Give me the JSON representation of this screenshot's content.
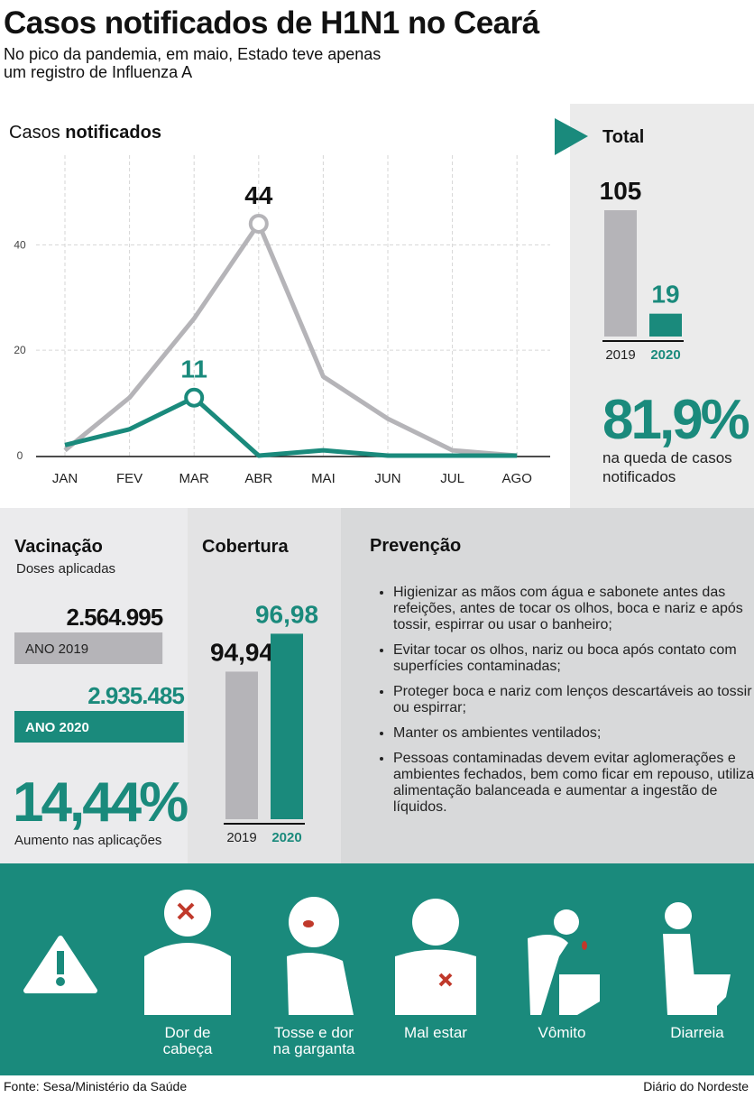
{
  "header": {
    "title": "Casos notificados de H1N1 no Ceará",
    "subtitle": "No pico da pandemia, em maio, Estado teve apenas um registro de Influenza A"
  },
  "chart_data": [
    {
      "type": "line",
      "title": "Casos",
      "title_bold": "notificados",
      "categories": [
        "JAN",
        "FEV",
        "MAR",
        "ABR",
        "MAI",
        "JUN",
        "JUL",
        "AGO"
      ],
      "series": [
        {
          "color": "#b5b4b8",
          "values": [
            1,
            11,
            26,
            44,
            15,
            7,
            1,
            0
          ],
          "markers": [
            3
          ]
        },
        {
          "color": "#1a8a7c",
          "values": [
            2,
            5,
            11,
            0,
            1,
            0,
            0,
            0
          ],
          "markers": [
            2
          ]
        }
      ],
      "ylim": [
        0,
        57
      ],
      "yticks": [
        0,
        20,
        40
      ],
      "grid": true
    },
    {
      "type": "bar",
      "title": "Total",
      "categories": [
        "2019",
        "2020"
      ],
      "values": [
        105,
        19
      ],
      "colors": [
        "#b5b4b8",
        "#1a8a7c"
      ],
      "ylim": [
        0,
        105
      ],
      "highlight": "81,9%",
      "highlight_text": "na queda de casos notificados"
    },
    {
      "type": "hbar",
      "title": "Vacinação",
      "subtitle": "Doses aplicadas",
      "categories": [
        "ANO 2019",
        "ANO 2020"
      ],
      "values": [
        2564995,
        2935485
      ],
      "value_labels": [
        "2.564.995",
        "2.935.485"
      ],
      "colors": [
        "#b5b4b8",
        "#1a8a7c"
      ],
      "xlim": [
        0,
        3000000
      ],
      "highlight": "14,44%",
      "highlight_text": "Aumento nas aplicações"
    },
    {
      "type": "bar",
      "title": "Cobertura",
      "categories": [
        "2019",
        "2020"
      ],
      "values": [
        94.94,
        96.98
      ],
      "value_labels": [
        "94,94",
        "96,98"
      ],
      "colors": [
        "#b5b4b8",
        "#1a8a7c"
      ],
      "ylim": [
        87,
        97
      ]
    }
  ],
  "prevention": {
    "title": "Prevenção",
    "items": [
      "Higienizar as mãos com água e sabonete antes das refeições, antes de tocar os olhos, boca e nariz e após tossir, espirrar ou usar o banheiro;",
      "Evitar tocar os olhos, nariz ou boca após contato com superfícies contaminadas;",
      "Proteger boca e nariz com lenços descartáveis ao tossir ou espirrar;",
      "Manter os ambientes ventilados;",
      "Pessoas contaminadas devem evitar aglomerações e ambientes fechados, bem como ficar em repouso, utilizar alimentação balanceada e aumentar a ingestão de líquidos."
    ]
  },
  "symptoms": [
    "Dor de cabeça",
    "Tosse e dor na garganta",
    "Mal estar",
    "Vômito",
    "Diarreia"
  ],
  "footer": {
    "source": "Fonte: Sesa/Ministério da Saúde",
    "brand": "Diário do Nordeste"
  }
}
